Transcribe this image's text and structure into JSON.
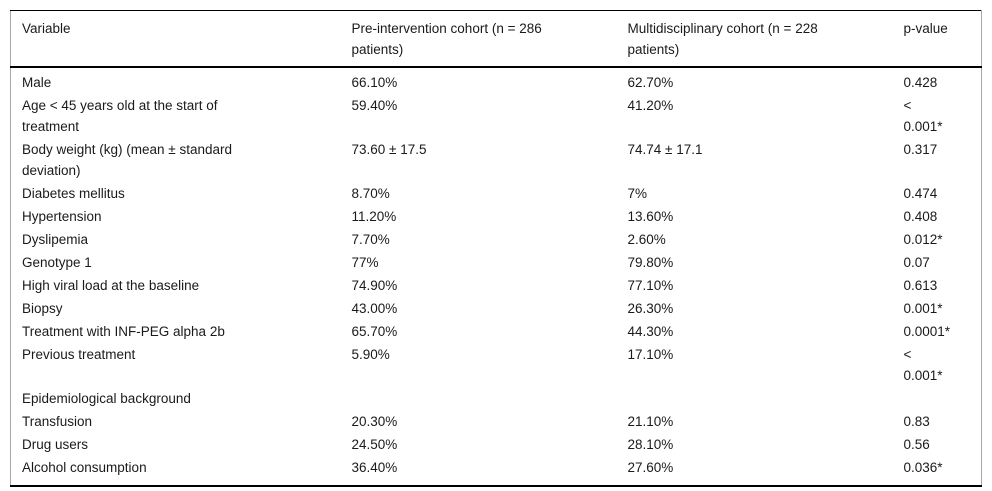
{
  "colors": {
    "background": "#ffffff",
    "text": "#1a1a1a",
    "rule_strong": "#000000",
    "rule_side": "#a8a8a8"
  },
  "table": {
    "columns": [
      "Variable",
      "Pre-intervention cohort (n = 286\npatients)",
      "Multidisciplinary cohort (n = 228\npatients)",
      "p-value"
    ],
    "rows": [
      [
        "Male",
        "66.10%",
        "62.70%",
        "0.428"
      ],
      [
        "Age < 45 years old at the start of\ntreatment",
        "59.40%",
        "41.20%",
        "<\n0.001*"
      ],
      [
        "Body weight (kg) (mean ± standard\ndeviation)",
        "73.60 ± 17.5",
        "74.74 ± 17.1",
        "0.317"
      ],
      [
        "Diabetes mellitus",
        "8.70%",
        "7%",
        "0.474"
      ],
      [
        "Hypertension",
        "11.20%",
        "13.60%",
        "0.408"
      ],
      [
        "Dyslipemia",
        "7.70%",
        "2.60%",
        "0.012*"
      ],
      [
        "Genotype 1",
        "77%",
        "79.80%",
        "0.07"
      ],
      [
        "High viral load at the baseline",
        "74.90%",
        "77.10%",
        "0.613"
      ],
      [
        "Biopsy",
        "43.00%",
        "26.30%",
        "0.001*"
      ],
      [
        "Treatment with INF-PEG alpha 2b",
        "65.70%",
        "44.30%",
        "0.0001*"
      ],
      [
        "Previous treatment",
        "5.90%",
        "17.10%",
        "<\n0.001*"
      ],
      [
        "Epidemiological background",
        "",
        "",
        ""
      ],
      [
        "Transfusion",
        "20.30%",
        "21.10%",
        "0.83"
      ],
      [
        "Drug users",
        "24.50%",
        "28.10%",
        "0.56"
      ],
      [
        "Alcohol consumption",
        "36.40%",
        "27.60%",
        "0.036*"
      ]
    ]
  }
}
